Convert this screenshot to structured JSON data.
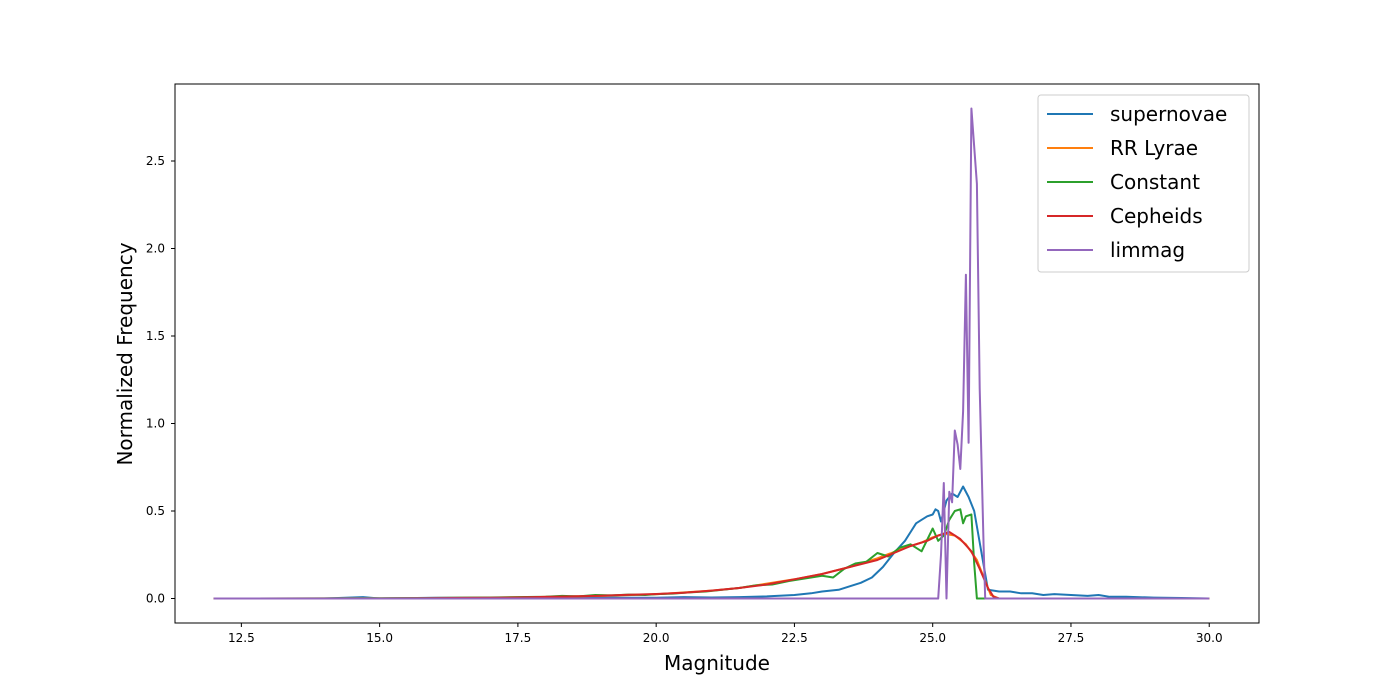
{
  "chart_data": {
    "type": "line",
    "title": "",
    "xlabel": "Magnitude",
    "ylabel": "Normalized Frequency",
    "xlim": [
      11.3,
      30.9
    ],
    "ylim": [
      -0.14,
      2.94
    ],
    "xticks": [
      "12.5",
      "15.0",
      "17.5",
      "20.0",
      "22.5",
      "25.0",
      "27.5",
      "30.0"
    ],
    "yticks": [
      "0.0",
      "0.5",
      "1.0",
      "1.5",
      "2.0",
      "2.5"
    ],
    "grid": false,
    "legend_position": "top-right",
    "series": [
      {
        "name": "supernovae",
        "color": "#1f77b4",
        "points": [
          [
            12.0,
            0.0
          ],
          [
            14.0,
            0.0
          ],
          [
            14.7,
            0.008
          ],
          [
            15.0,
            0.0
          ],
          [
            16.0,
            0.004
          ],
          [
            17.0,
            0.005
          ],
          [
            18.0,
            0.004
          ],
          [
            19.0,
            0.005
          ],
          [
            20.0,
            0.004
          ],
          [
            20.5,
            0.008
          ],
          [
            21.0,
            0.006
          ],
          [
            21.5,
            0.008
          ],
          [
            22.0,
            0.012
          ],
          [
            22.5,
            0.02
          ],
          [
            22.8,
            0.03
          ],
          [
            23.0,
            0.04
          ],
          [
            23.3,
            0.05
          ],
          [
            23.5,
            0.07
          ],
          [
            23.7,
            0.09
          ],
          [
            23.9,
            0.12
          ],
          [
            24.1,
            0.18
          ],
          [
            24.3,
            0.26
          ],
          [
            24.5,
            0.33
          ],
          [
            24.6,
            0.38
          ],
          [
            24.7,
            0.43
          ],
          [
            24.8,
            0.45
          ],
          [
            24.9,
            0.47
          ],
          [
            25.0,
            0.48
          ],
          [
            25.05,
            0.51
          ],
          [
            25.1,
            0.5
          ],
          [
            25.15,
            0.44
          ],
          [
            25.25,
            0.56
          ],
          [
            25.35,
            0.6
          ],
          [
            25.45,
            0.58
          ],
          [
            25.55,
            0.64
          ],
          [
            25.65,
            0.58
          ],
          [
            25.75,
            0.5
          ],
          [
            25.85,
            0.32
          ],
          [
            25.95,
            0.14
          ],
          [
            26.0,
            0.05
          ],
          [
            26.2,
            0.04
          ],
          [
            26.4,
            0.04
          ],
          [
            26.6,
            0.03
          ],
          [
            26.8,
            0.03
          ],
          [
            27.0,
            0.02
          ],
          [
            27.2,
            0.025
          ],
          [
            27.5,
            0.02
          ],
          [
            27.8,
            0.015
          ],
          [
            28.0,
            0.02
          ],
          [
            28.2,
            0.01
          ],
          [
            28.5,
            0.01
          ],
          [
            29.0,
            0.005
          ],
          [
            29.5,
            0.003
          ],
          [
            30.0,
            0.0
          ]
        ]
      },
      {
        "name": "RR Lyrae",
        "color": "#ff7f0e",
        "points": [
          [
            12.0,
            0.0
          ],
          [
            15.0,
            0.001
          ],
          [
            17.0,
            0.005
          ],
          [
            18.0,
            0.009
          ],
          [
            19.0,
            0.015
          ],
          [
            20.0,
            0.024
          ],
          [
            21.0,
            0.045
          ],
          [
            21.5,
            0.06
          ],
          [
            22.0,
            0.085
          ],
          [
            22.5,
            0.11
          ],
          [
            23.0,
            0.14
          ],
          [
            23.5,
            0.18
          ],
          [
            24.0,
            0.23
          ],
          [
            24.5,
            0.29
          ],
          [
            24.8,
            0.32
          ],
          [
            25.0,
            0.35
          ],
          [
            25.2,
            0.37
          ],
          [
            25.4,
            0.36
          ],
          [
            25.6,
            0.31
          ],
          [
            25.8,
            0.22
          ],
          [
            25.95,
            0.1
          ],
          [
            26.05,
            0.02
          ],
          [
            26.2,
            0.0
          ],
          [
            27.0,
            0.0
          ],
          [
            30.0,
            0.0
          ]
        ]
      },
      {
        "name": "Constant",
        "color": "#2ca02c",
        "points": [
          [
            12.0,
            0.0
          ],
          [
            15.0,
            0.001
          ],
          [
            16.0,
            0.003
          ],
          [
            17.0,
            0.006
          ],
          [
            17.5,
            0.008
          ],
          [
            18.0,
            0.01
          ],
          [
            18.3,
            0.015
          ],
          [
            18.6,
            0.012
          ],
          [
            18.9,
            0.02
          ],
          [
            19.2,
            0.018
          ],
          [
            19.5,
            0.022
          ],
          [
            19.8,
            0.02
          ],
          [
            20.0,
            0.025
          ],
          [
            20.3,
            0.028
          ],
          [
            20.6,
            0.035
          ],
          [
            20.9,
            0.04
          ],
          [
            21.2,
            0.05
          ],
          [
            21.5,
            0.06
          ],
          [
            21.8,
            0.075
          ],
          [
            22.1,
            0.08
          ],
          [
            22.4,
            0.1
          ],
          [
            22.7,
            0.115
          ],
          [
            23.0,
            0.13
          ],
          [
            23.2,
            0.12
          ],
          [
            23.4,
            0.17
          ],
          [
            23.6,
            0.2
          ],
          [
            23.8,
            0.21
          ],
          [
            24.0,
            0.26
          ],
          [
            24.2,
            0.24
          ],
          [
            24.4,
            0.29
          ],
          [
            24.6,
            0.31
          ],
          [
            24.8,
            0.27
          ],
          [
            25.0,
            0.4
          ],
          [
            25.1,
            0.33
          ],
          [
            25.2,
            0.36
          ],
          [
            25.3,
            0.45
          ],
          [
            25.4,
            0.5
          ],
          [
            25.5,
            0.51
          ],
          [
            25.55,
            0.43
          ],
          [
            25.6,
            0.47
          ],
          [
            25.7,
            0.48
          ],
          [
            25.75,
            0.2
          ],
          [
            25.8,
            0.0
          ],
          [
            26.0,
            0.0
          ],
          [
            30.0,
            0.0
          ]
        ]
      },
      {
        "name": "Cepheids",
        "color": "#d62728",
        "points": [
          [
            12.0,
            0.0
          ],
          [
            15.0,
            0.0
          ],
          [
            16.0,
            0.002
          ],
          [
            17.0,
            0.004
          ],
          [
            17.5,
            0.006
          ],
          [
            18.0,
            0.009
          ],
          [
            18.5,
            0.012
          ],
          [
            19.0,
            0.016
          ],
          [
            19.5,
            0.021
          ],
          [
            20.0,
            0.026
          ],
          [
            20.5,
            0.033
          ],
          [
            21.0,
            0.045
          ],
          [
            21.5,
            0.06
          ],
          [
            22.0,
            0.08
          ],
          [
            22.5,
            0.11
          ],
          [
            23.0,
            0.14
          ],
          [
            23.5,
            0.18
          ],
          [
            24.0,
            0.22
          ],
          [
            24.3,
            0.26
          ],
          [
            24.6,
            0.3
          ],
          [
            24.9,
            0.33
          ],
          [
            25.1,
            0.36
          ],
          [
            25.3,
            0.38
          ],
          [
            25.5,
            0.34
          ],
          [
            25.7,
            0.27
          ],
          [
            25.85,
            0.17
          ],
          [
            26.0,
            0.06
          ],
          [
            26.1,
            0.01
          ],
          [
            26.2,
            0.0
          ],
          [
            30.0,
            0.0
          ]
        ]
      },
      {
        "name": "limmag",
        "color": "#9467bd",
        "points": [
          [
            12.0,
            0.0
          ],
          [
            25.1,
            0.0
          ],
          [
            25.15,
            0.25
          ],
          [
            25.2,
            0.66
          ],
          [
            25.25,
            0.0
          ],
          [
            25.3,
            0.61
          ],
          [
            25.35,
            0.55
          ],
          [
            25.4,
            0.96
          ],
          [
            25.45,
            0.88
          ],
          [
            25.5,
            0.74
          ],
          [
            25.55,
            1.07
          ],
          [
            25.6,
            1.85
          ],
          [
            25.65,
            0.89
          ],
          [
            25.7,
            2.8
          ],
          [
            25.8,
            2.37
          ],
          [
            25.85,
            1.2
          ],
          [
            25.92,
            0.3
          ],
          [
            25.95,
            0.0
          ],
          [
            30.0,
            0.0
          ]
        ]
      }
    ]
  }
}
